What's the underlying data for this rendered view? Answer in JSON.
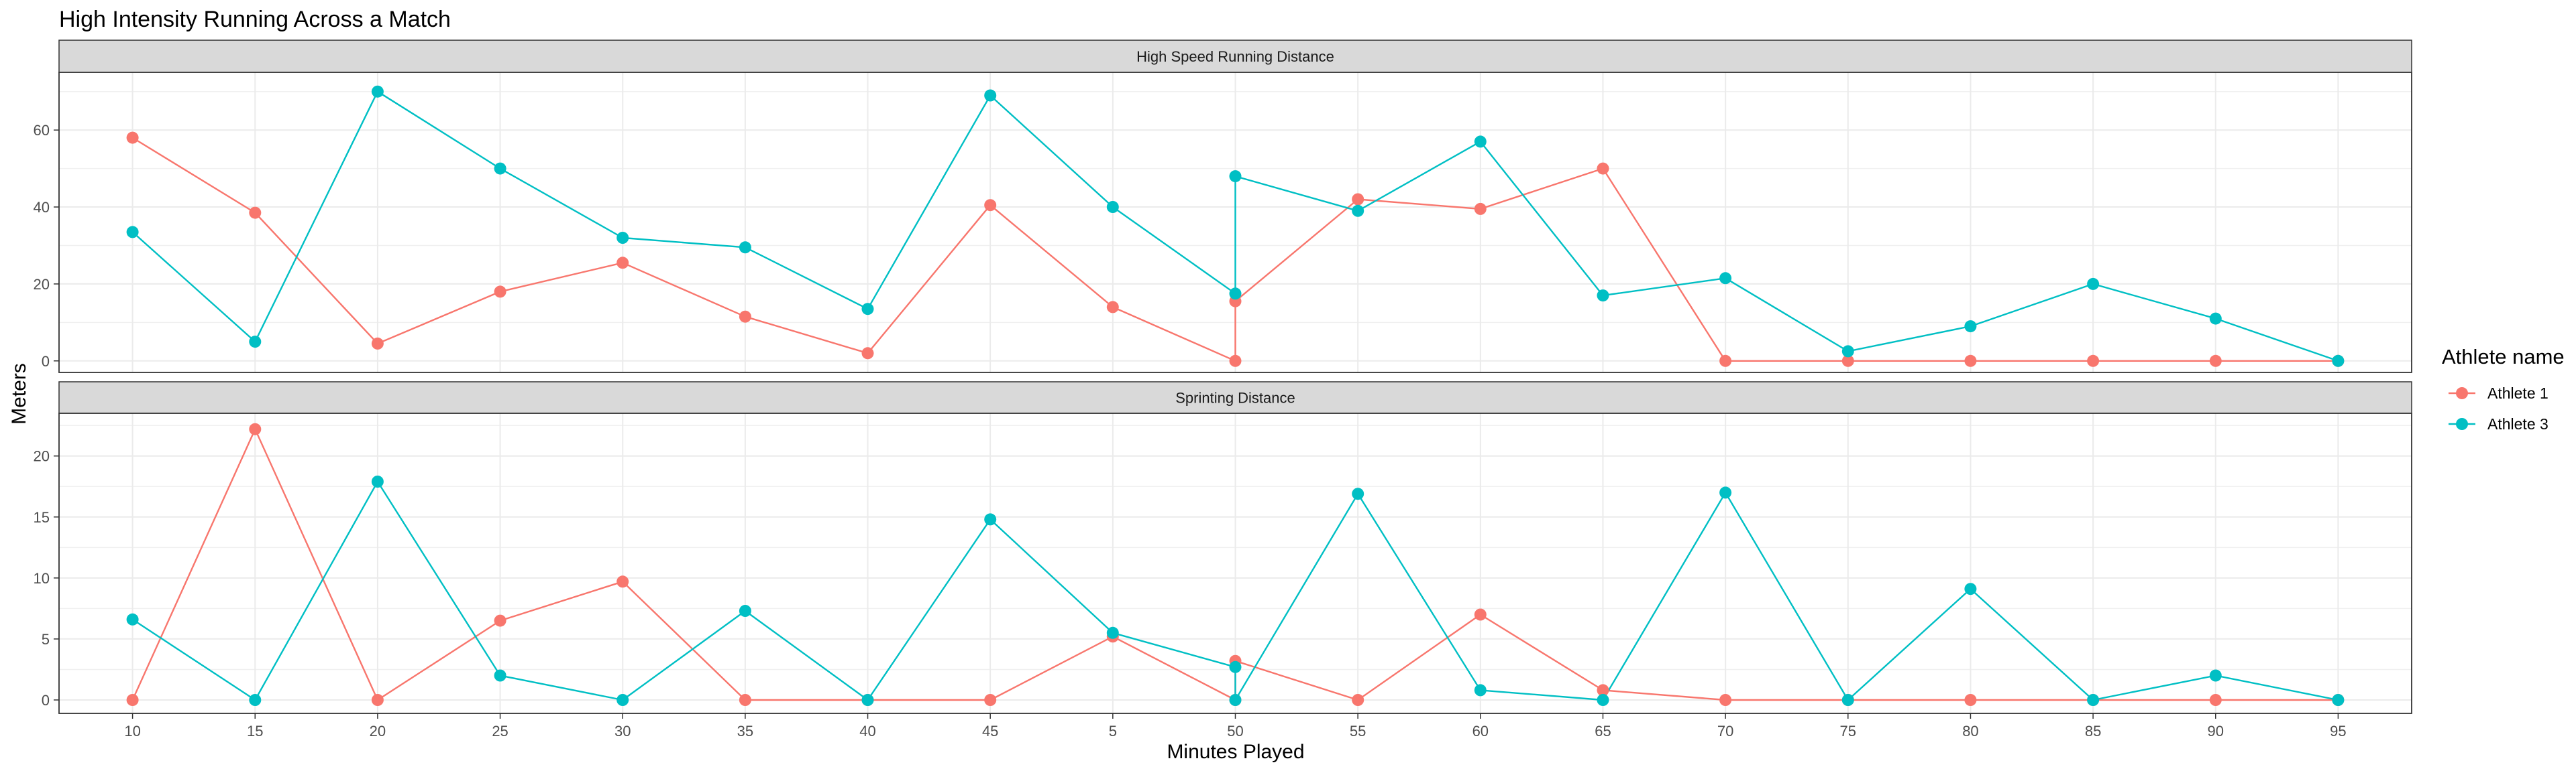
{
  "chart_data": {
    "type": "line",
    "title": "High Intensity Running Across a Match",
    "xlabel": "Minutes Played",
    "ylabel": "Meters",
    "legend": {
      "title": "Athlete name",
      "placement": "right"
    },
    "categories": [
      "10",
      "15",
      "20",
      "25",
      "30",
      "35",
      "40",
      "45",
      "5",
      "50",
      "55",
      "60",
      "65",
      "70",
      "75",
      "80",
      "85",
      "90",
      "95"
    ],
    "colors": {
      "Athlete 1": "#F8766D",
      "Athlete 3": "#00BFC4"
    },
    "grid": true,
    "facets": [
      {
        "title": "High Speed Running Distance",
        "ylim": [
          -3,
          75
        ],
        "yticks": [
          0,
          20,
          40,
          60
        ],
        "series": [
          {
            "name": "Athlete 1",
            "points": [
              [
                "10",
                58
              ],
              [
                "15",
                38.5
              ],
              [
                "20",
                4.5
              ],
              [
                "25",
                18
              ],
              [
                "30",
                25.5
              ],
              [
                "35",
                11.5
              ],
              [
                "40",
                2
              ],
              [
                "45",
                40.5
              ],
              [
                "5",
                14
              ],
              [
                "50",
                0
              ],
              [
                "50",
                15.5
              ],
              [
                "55",
                42
              ],
              [
                "60",
                39.5
              ],
              [
                "65",
                50
              ],
              [
                "70",
                0
              ],
              [
                "75",
                0
              ],
              [
                "80",
                0
              ],
              [
                "85",
                0
              ],
              [
                "90",
                0
              ],
              [
                "95",
                0
              ]
            ]
          },
          {
            "name": "Athlete 3",
            "points": [
              [
                "10",
                33.5
              ],
              [
                "15",
                5
              ],
              [
                "20",
                70
              ],
              [
                "25",
                50
              ],
              [
                "30",
                32
              ],
              [
                "35",
                29.5
              ],
              [
                "40",
                13.5
              ],
              [
                "45",
                69
              ],
              [
                "5",
                40
              ],
              [
                "50",
                17.5
              ],
              [
                "50",
                48
              ],
              [
                "55",
                39
              ],
              [
                "60",
                57
              ],
              [
                "65",
                17
              ],
              [
                "70",
                21.5
              ],
              [
                "75",
                2.5
              ],
              [
                "80",
                9
              ],
              [
                "85",
                20
              ],
              [
                "90",
                11
              ],
              [
                "95",
                0
              ]
            ]
          }
        ]
      },
      {
        "title": "Sprinting Distance",
        "ylim": [
          -1.1,
          23.5
        ],
        "yticks": [
          0,
          5,
          10,
          15,
          20
        ],
        "series": [
          {
            "name": "Athlete 1",
            "points": [
              [
                "10",
                0
              ],
              [
                "15",
                22.2
              ],
              [
                "20",
                0
              ],
              [
                "25",
                6.5
              ],
              [
                "30",
                9.7
              ],
              [
                "35",
                0
              ],
              [
                "40",
                0
              ],
              [
                "45",
                0
              ],
              [
                "5",
                5.2
              ],
              [
                "50",
                0
              ],
              [
                "50",
                3.2
              ],
              [
                "55",
                0
              ],
              [
                "60",
                7
              ],
              [
                "65",
                0.8
              ],
              [
                "70",
                0
              ],
              [
                "75",
                0
              ],
              [
                "80",
                0
              ],
              [
                "85",
                0
              ],
              [
                "90",
                0
              ],
              [
                "95",
                0
              ]
            ]
          },
          {
            "name": "Athlete 3",
            "points": [
              [
                "10",
                6.6
              ],
              [
                "15",
                0
              ],
              [
                "20",
                17.9
              ],
              [
                "25",
                2
              ],
              [
                "30",
                0
              ],
              [
                "35",
                7.3
              ],
              [
                "40",
                0
              ],
              [
                "45",
                14.8
              ],
              [
                "5",
                5.5
              ],
              [
                "50",
                2.7
              ],
              [
                "50",
                0
              ],
              [
                "55",
                16.9
              ],
              [
                "60",
                0.8
              ],
              [
                "65",
                0
              ],
              [
                "70",
                17
              ],
              [
                "75",
                0
              ],
              [
                "80",
                9.1
              ],
              [
                "85",
                0
              ],
              [
                "90",
                2
              ],
              [
                "95",
                0
              ]
            ]
          }
        ]
      }
    ]
  }
}
